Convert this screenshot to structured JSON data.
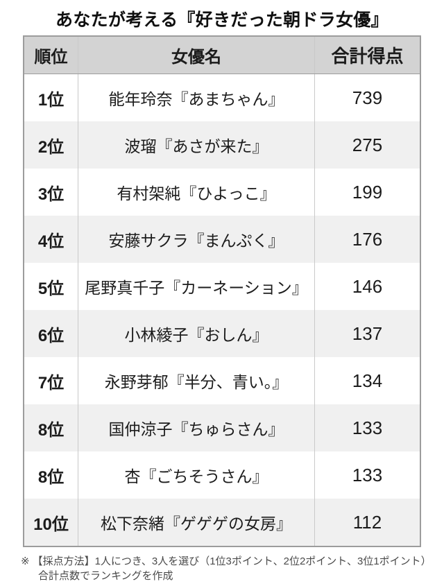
{
  "title": "あなたが考える『好きだった朝ドラ女優』",
  "table": {
    "headers": [
      "順位",
      "女優名",
      "合計得点"
    ],
    "rows": [
      {
        "rank": "1位",
        "name": "能年玲奈『あまちゃん』",
        "score": "739"
      },
      {
        "rank": "2位",
        "name": "波瑠『あさが来た』",
        "score": "275"
      },
      {
        "rank": "3位",
        "name": "有村架純『ひよっこ』",
        "score": "199"
      },
      {
        "rank": "4位",
        "name": "安藤サクラ『まんぷく』",
        "score": "176"
      },
      {
        "rank": "5位",
        "name": "尾野真千子『カーネーション』",
        "score": "146"
      },
      {
        "rank": "6位",
        "name": "小林綾子『おしん』",
        "score": "137"
      },
      {
        "rank": "7位",
        "name": "永野芽郁『半分、青い。』",
        "score": "134"
      },
      {
        "rank": "8位",
        "name": "国仲涼子『ちゅらさん』",
        "score": "133"
      },
      {
        "rank": "8位",
        "name": "杏『ごちそうさん』",
        "score": "133"
      },
      {
        "rank": "10位",
        "name": "松下奈緒『ゲゲゲの女房』",
        "score": "112"
      }
    ]
  },
  "footnote": {
    "marker": "※",
    "text": "【採点方法】1人につき、3人を選び（1位3ポイント、2位2ポイント、3位1ポイント）合計点数でランキングを作成"
  },
  "colors": {
    "header_bg": "#d3d3d3",
    "row_alt_bg": "#f0f0f0",
    "outer_border": "#9c9c9c",
    "inner_border": "#c9c9c9",
    "text": "#1c1c1c",
    "footnote_text": "#4a4a4a"
  },
  "chart_data": {
    "type": "table",
    "title": "あなたが考える『好きだった朝ドラ女優』",
    "columns": [
      "順位",
      "女優名",
      "合計得点"
    ],
    "rows": [
      [
        "1位",
        "能年玲奈『あまちゃん』",
        739
      ],
      [
        "2位",
        "波瑠『あさが来た』",
        275
      ],
      [
        "3位",
        "有村架純『ひよっこ』",
        199
      ],
      [
        "4位",
        "安藤サクラ『まんぷく』",
        176
      ],
      [
        "5位",
        "尾野真千子『カーネーション』",
        146
      ],
      [
        "6位",
        "小林綾子『おしん』",
        137
      ],
      [
        "7位",
        "永野芽郁『半分、青い。』",
        134
      ],
      [
        "8位",
        "国仲涼子『ちゅらさん』",
        133
      ],
      [
        "8位",
        "杏『ごちそうさん』",
        133
      ],
      [
        "10位",
        "松下奈緒『ゲゲゲの女房』",
        112
      ]
    ],
    "note": "※【採点方法】1人につき、3人を選び（1位3ポイント、2位2ポイント、3位1ポイント）合計点数でランキングを作成"
  }
}
